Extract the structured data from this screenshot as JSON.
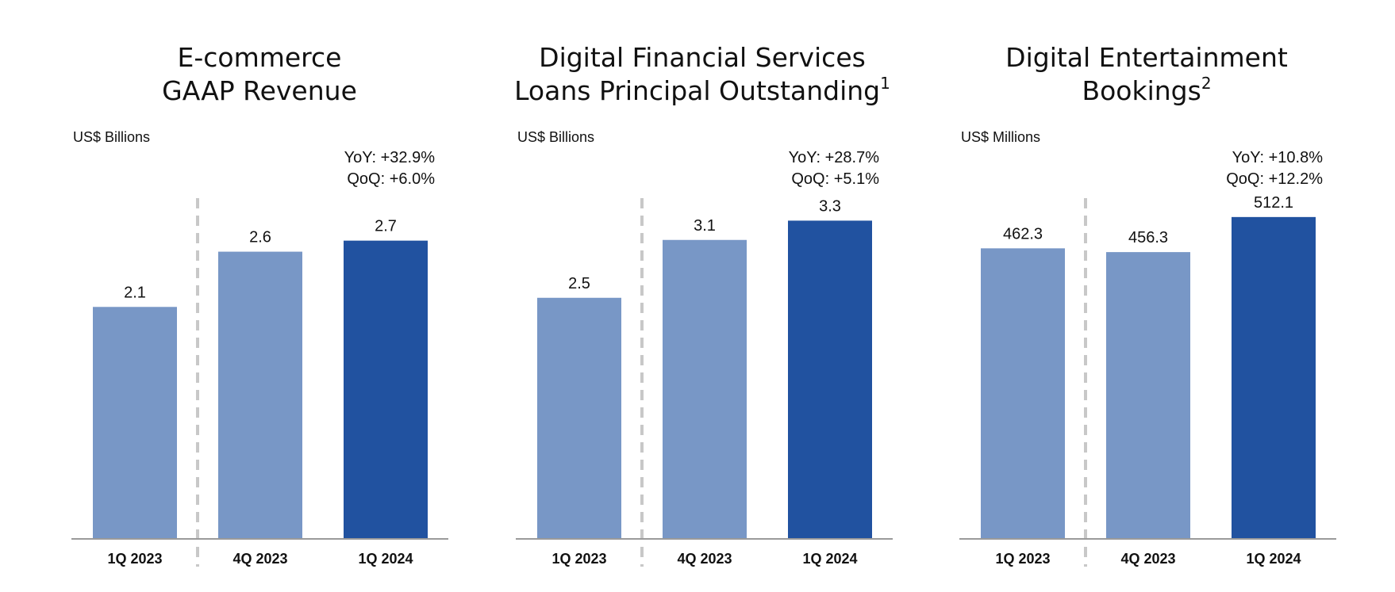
{
  "colors": {
    "prior_bar": "#7897c6",
    "current_bar": "#2152a0",
    "divider": "#c8c8c8",
    "axis": "#9a9a9a"
  },
  "chart_data": [
    {
      "type": "bar",
      "title": [
        "E-commerce",
        "GAAP Revenue"
      ],
      "title_superscript": "",
      "unit_label": "US$ Billions",
      "categories": [
        "1Q 2023",
        "4Q 2023",
        "1Q 2024"
      ],
      "values": [
        2.1,
        2.6,
        2.7
      ],
      "value_labels": [
        "2.1",
        "2.6",
        "2.7"
      ],
      "highlight_index": 2,
      "yoy": "YoY: +32.9%",
      "qoq": "QoQ: +6.0%",
      "ylim": [
        0,
        3.3
      ]
    },
    {
      "type": "bar",
      "title": [
        "Digital Financial Services",
        "Loans Principal Outstanding"
      ],
      "title_superscript": "1",
      "unit_label": "US$ Billions",
      "categories": [
        "1Q 2023",
        "4Q 2023",
        "1Q 2024"
      ],
      "values": [
        2.5,
        3.1,
        3.3
      ],
      "value_labels": [
        "2.5",
        "3.1",
        "3.3"
      ],
      "highlight_index": 2,
      "yoy": "YoY: +28.7%",
      "qoq": "QoQ: +5.1%",
      "ylim": [
        0,
        3.78
      ]
    },
    {
      "type": "bar",
      "title": [
        "Digital Entertainment",
        "Bookings"
      ],
      "title_superscript": "2",
      "unit_label": "US$ Millions",
      "categories": [
        "1Q 2023",
        "4Q 2023",
        "1Q 2024"
      ],
      "values": [
        462.3,
        456.3,
        512.1
      ],
      "value_labels": [
        "462.3",
        "456.3",
        "512.1"
      ],
      "highlight_index": 2,
      "yoy": "YoY: +10.8%",
      "qoq": "QoQ: +12.2%",
      "ylim": [
        0,
        580
      ]
    }
  ]
}
